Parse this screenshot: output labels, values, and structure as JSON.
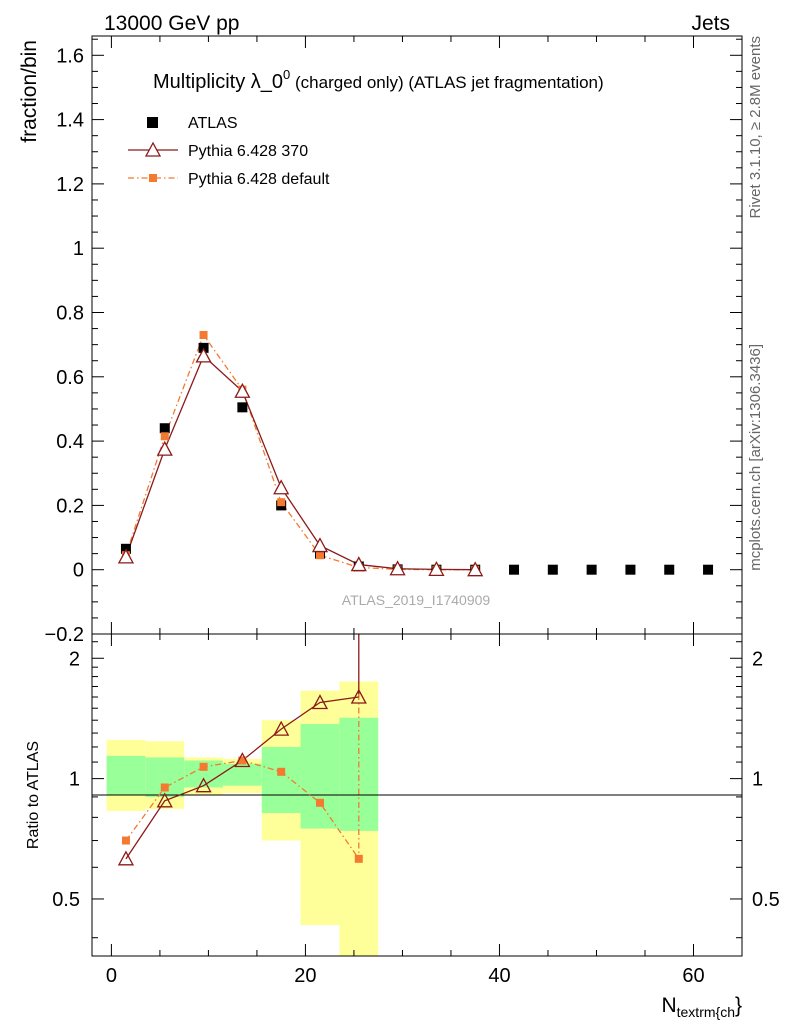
{
  "header": {
    "left": "13000 GeV pp",
    "right": "Jets"
  },
  "side_text": {
    "rivet": "Rivet 3.1.10, ≥ 2.8M events",
    "mcplots": "mcplots.cern.ch [arXiv:1306.3436]"
  },
  "colors": {
    "atlas": "#000000",
    "pythia370": "#8b1a1a",
    "pythia_default": "#f47a30",
    "band_inner": "#99ff99",
    "band_outer": "#ffff99"
  },
  "chart_data": [
    {
      "type": "scatter",
      "title_main": "Multiplicity λ_0",
      "title_sup": "0",
      "title_rest": " (charged only) (ATLAS jet fragmentation)",
      "ylabel": "fraction/bin",
      "watermark": "ATLAS_2019_I1740909",
      "xlim": [
        -2,
        65
      ],
      "ylim": [
        -0.2,
        1.66
      ],
      "yticks": [
        -0.2,
        0,
        0.2,
        0.4,
        0.6,
        0.8,
        1,
        1.2,
        1.4,
        1.6
      ],
      "ytick_labels": [
        "−0.2",
        "0",
        "0.2",
        "0.4",
        "0.6",
        "0.8",
        "1",
        "1.2",
        "1.4",
        "1.6"
      ],
      "legend": [
        "ATLAS",
        "Pythia 6.428 370",
        "Pythia 6.428 default"
      ],
      "series": [
        {
          "name": "ATLAS",
          "x": [
            1.5,
            5.5,
            9.5,
            13.5,
            17.5,
            21.5,
            25.5,
            29.5,
            33.5,
            37.5,
            41.5,
            45.5,
            49.5,
            53.5,
            57.5,
            61.5
          ],
          "y": [
            0.065,
            0.44,
            0.69,
            0.505,
            0.2,
            0.05,
            0.01,
            0.001,
            0.0,
            0.0,
            0.0,
            0.0,
            0.0,
            0.0,
            0.0,
            0.0
          ]
        },
        {
          "name": "Pythia 6.428 370",
          "x": [
            1.5,
            5.5,
            9.5,
            13.5,
            17.5,
            21.5,
            25.5,
            29.5,
            33.5,
            37.5
          ],
          "y": [
            0.04,
            0.375,
            0.665,
            0.555,
            0.255,
            0.075,
            0.016,
            0.003,
            0.001,
            0.0
          ]
        },
        {
          "name": "Pythia 6.428 default",
          "x": [
            1.5,
            5.5,
            9.5,
            13.5,
            17.5,
            21.5,
            25.5,
            29.5,
            33.5,
            37.5
          ],
          "y": [
            0.045,
            0.415,
            0.73,
            0.56,
            0.21,
            0.045,
            0.007,
            0.001,
            0.0,
            0.0
          ]
        }
      ]
    },
    {
      "type": "line",
      "ylabel": "Ratio to ATLAS",
      "xlabel_main": "N",
      "xlabel_sub": "textrm{ch",
      "xlabel_close": "}",
      "xlim": [
        -2,
        65
      ],
      "ylim": [
        0.36,
        2.3
      ],
      "log_y": true,
      "yticks": [
        0.5,
        1,
        2
      ],
      "ytick_labels": [
        "0.5",
        "1",
        "2"
      ],
      "xticks": [
        0,
        20,
        40,
        60
      ],
      "xtick_labels": [
        "0",
        "20",
        "40",
        "60"
      ],
      "bands": {
        "edges": [
          -0.5,
          3.5,
          7.5,
          11.5,
          15.5,
          19.5,
          23.5,
          27.5
        ],
        "inner_lo": [
          0.91,
          0.9,
          0.95,
          0.96,
          0.82,
          0.75,
          0.74
        ],
        "inner_hi": [
          1.14,
          1.13,
          1.11,
          1.09,
          1.2,
          1.37,
          1.42
        ],
        "outer_lo": [
          0.83,
          0.84,
          0.91,
          0.92,
          0.7,
          0.43,
          0.36
        ],
        "outer_hi": [
          1.25,
          1.24,
          1.13,
          1.12,
          1.4,
          1.66,
          1.75
        ]
      },
      "series": [
        {
          "name": "Pythia 6.428 370",
          "x": [
            1.5,
            5.5,
            9.5,
            13.5,
            17.5,
            21.5,
            25.5
          ],
          "y": [
            0.63,
            0.88,
            0.96,
            1.11,
            1.33,
            1.55,
            1.6
          ]
        },
        {
          "name": "Pythia 6.428 default",
          "x": [
            1.5,
            5.5,
            9.5,
            13.5,
            17.5,
            21.5,
            25.5
          ],
          "y": [
            0.7,
            0.95,
            1.07,
            1.11,
            1.04,
            0.87,
            0.63
          ]
        }
      ]
    }
  ]
}
